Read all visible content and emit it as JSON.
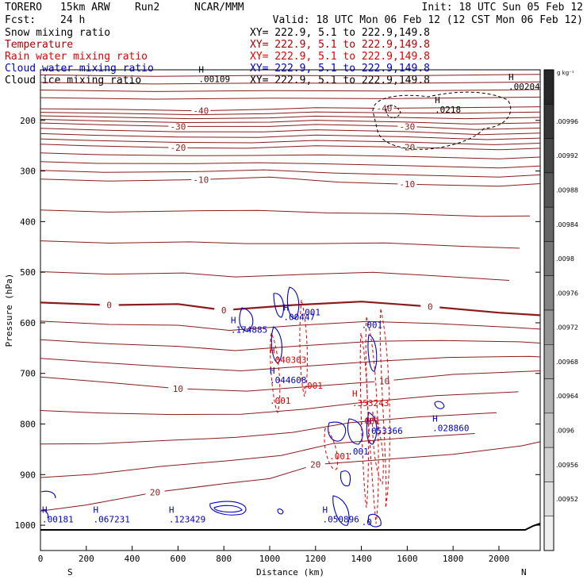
{
  "header": {
    "model": "TORERO",
    "resolution": "15km ARW",
    "run": "Run2",
    "center": "NCAR/MMM",
    "init": "Init: 18 UTC Sun 05 Feb 12",
    "fcst_label": "Fcst:",
    "fcst_value": "24 h",
    "valid": "Valid: 18 UTC Mon 06 Feb 12 (12 CST Mon 06 Feb 12)"
  },
  "legend": [
    {
      "name": "Snow mixing ratio",
      "color": "#000000",
      "xy": "XY= 222.9,  5.1 to 222.9,149.8"
    },
    {
      "name": "Temperature",
      "color": "#b00000",
      "xy": "XY= 222.9,  5.1 to 222.9,149.8"
    },
    {
      "name": "Rain water mixing ratio",
      "color": "#e00000",
      "xy": "XY= 222.9,  5.1 to 222.9,149.8"
    },
    {
      "name": "Cloud water mixing ratio",
      "color": "#0000cc",
      "xy": "XY= 222.9,  5.1 to 222.9,149.8"
    },
    {
      "name": "Cloud ice mixing ratio",
      "color": "#000000",
      "xy": "XY= 222.9,  5.1 to 222.9,149.8"
    }
  ],
  "colorbar": {
    "unit": "g kg⁻¹",
    "labels": [
      ".00996",
      ".00992",
      ".00988",
      ".00984",
      ".0098",
      ".00976",
      ".00972",
      ".00968",
      ".00964",
      ".0096",
      ".00956",
      ".00952"
    ]
  },
  "chart_data": {
    "type": "cross-section contour",
    "xlabel": "Distance (km)",
    "ylabel": "Pressure (hPa)",
    "xlim": [
      0,
      2180
    ],
    "ylim": [
      1050,
      100
    ],
    "x_ticks": [
      0,
      200,
      400,
      600,
      800,
      1000,
      1200,
      1400,
      1600,
      1800,
      2000
    ],
    "y_ticks": [
      200,
      300,
      400,
      500,
      600,
      700,
      800,
      900,
      1000
    ],
    "x_end_labels": {
      "left": "S",
      "right": "N"
    },
    "temperature_contours": [
      {
        "value": -40,
        "label": "-40",
        "points": [
          [
            0,
            177
          ],
          [
            300,
            178
          ],
          [
            700,
            181
          ],
          [
            1000,
            178
          ],
          [
            1200,
            175
          ],
          [
            1500,
            176
          ],
          [
            1800,
            175
          ],
          [
            2180,
            173
          ]
        ]
      },
      {
        "value": -30,
        "label": "-30",
        "points": [
          [
            0,
            205
          ],
          [
            300,
            209
          ],
          [
            600,
            212
          ],
          [
            1000,
            212
          ],
          [
            1200,
            208
          ],
          [
            1600,
            212
          ],
          [
            1900,
            218
          ],
          [
            2180,
            215
          ]
        ]
      },
      {
        "value": -20,
        "label": "-20",
        "points": [
          [
            0,
            247
          ],
          [
            200,
            250
          ],
          [
            600,
            254
          ],
          [
            900,
            255
          ],
          [
            1200,
            250
          ],
          [
            1600,
            253
          ],
          [
            2000,
            258
          ],
          [
            2180,
            255
          ]
        ]
      },
      {
        "value": -10,
        "label": "-10",
        "points": [
          [
            0,
            316
          ],
          [
            300,
            320
          ],
          [
            700,
            317
          ],
          [
            1000,
            312
          ],
          [
            1300,
            322
          ],
          [
            1600,
            326
          ],
          [
            2000,
            330
          ],
          [
            2180,
            325
          ]
        ]
      },
      {
        "value": 0,
        "label": "0",
        "points": [
          [
            0,
            560
          ],
          [
            300,
            565
          ],
          [
            600,
            563
          ],
          [
            800,
            575
          ],
          [
            1100,
            565
          ],
          [
            1400,
            558
          ],
          [
            1700,
            568
          ],
          [
            2000,
            580
          ],
          [
            2180,
            585
          ]
        ]
      },
      {
        "value": 10,
        "label": "10",
        "points": [
          [
            0,
            707
          ],
          [
            300,
            718
          ],
          [
            600,
            730
          ],
          [
            900,
            735
          ],
          [
            1200,
            725
          ],
          [
            1500,
            715
          ],
          [
            1800,
            702
          ],
          [
            2180,
            695
          ]
        ]
      },
      {
        "value": 20,
        "label": "20",
        "points": [
          [
            0,
            972
          ],
          [
            200,
            960
          ],
          [
            500,
            935
          ],
          [
            800,
            918
          ],
          [
            1000,
            908
          ],
          [
            1200,
            880
          ],
          [
            1500,
            870
          ],
          [
            1800,
            860
          ],
          [
            2100,
            843
          ],
          [
            2180,
            835
          ]
        ]
      }
    ],
    "maxima_labels": [
      {
        "field": "Cloud ice mixing ratio",
        "x": 690,
        "p": 115,
        "label": ".00109"
      },
      {
        "field": "Cloud ice mixing ratio",
        "x": 2050,
        "p": 130,
        "label": ".00204"
      },
      {
        "field": "Cloud ice mixing ratio",
        "x": 1720,
        "p": 175,
        "label": ".0218"
      },
      {
        "field": "Cloud water mixing ratio",
        "x": 830,
        "p": 610,
        "label": ".174885"
      },
      {
        "field": "Cloud water mixing ratio",
        "x": 1060,
        "p": 585,
        "label": ".00447"
      },
      {
        "field": "Cloud water mixing ratio",
        "x": 1000,
        "p": 710,
        "label": ".044608"
      },
      {
        "field": "Cloud water mixing ratio",
        "x": 1420,
        "p": 810,
        "label": ".053366"
      },
      {
        "field": "Cloud water mixing ratio",
        "x": 1710,
        "p": 805,
        "label": ".028860"
      },
      {
        "field": "Cloud water mixing ratio",
        "x": 230,
        "p": 985,
        "label": ".067231"
      },
      {
        "field": "Cloud water mixing ratio",
        "x": 560,
        "p": 985,
        "label": ".123429"
      },
      {
        "field": "Cloud water mixing ratio",
        "x": 1230,
        "p": 985,
        "label": ".050896"
      },
      {
        "field": "Cloud water mixing ratio",
        "x": 0,
        "p": 985,
        "label": ".00181"
      },
      {
        "field": "Rain water mixing ratio",
        "x": 1000,
        "p": 670,
        "label": ".040303"
      },
      {
        "field": "Rain water mixing ratio",
        "x": 1360,
        "p": 755,
        "label": ".353243"
      }
    ],
    "small_labels": [
      {
        "x": 1130,
        "p": 585,
        "label": ".001",
        "color": "#0000cc"
      },
      {
        "x": 1400,
        "p": 610,
        "label": ".001",
        "color": "#0000cc"
      },
      {
        "x": 1140,
        "p": 730,
        "label": ".001",
        "color": "#e00000"
      },
      {
        "x": 1000,
        "p": 760,
        "label": ".001",
        "color": "#e00000"
      },
      {
        "x": 1390,
        "p": 800,
        "label": ".001",
        "color": "#e00000"
      },
      {
        "x": 1260,
        "p": 870,
        "label": ".001",
        "color": "#e00000"
      },
      {
        "x": 1340,
        "p": 860,
        "label": ".001",
        "color": "#0000cc"
      },
      {
        "x": 1400,
        "p": 1000,
        "label": ".0",
        "color": "#0000cc"
      }
    ]
  }
}
